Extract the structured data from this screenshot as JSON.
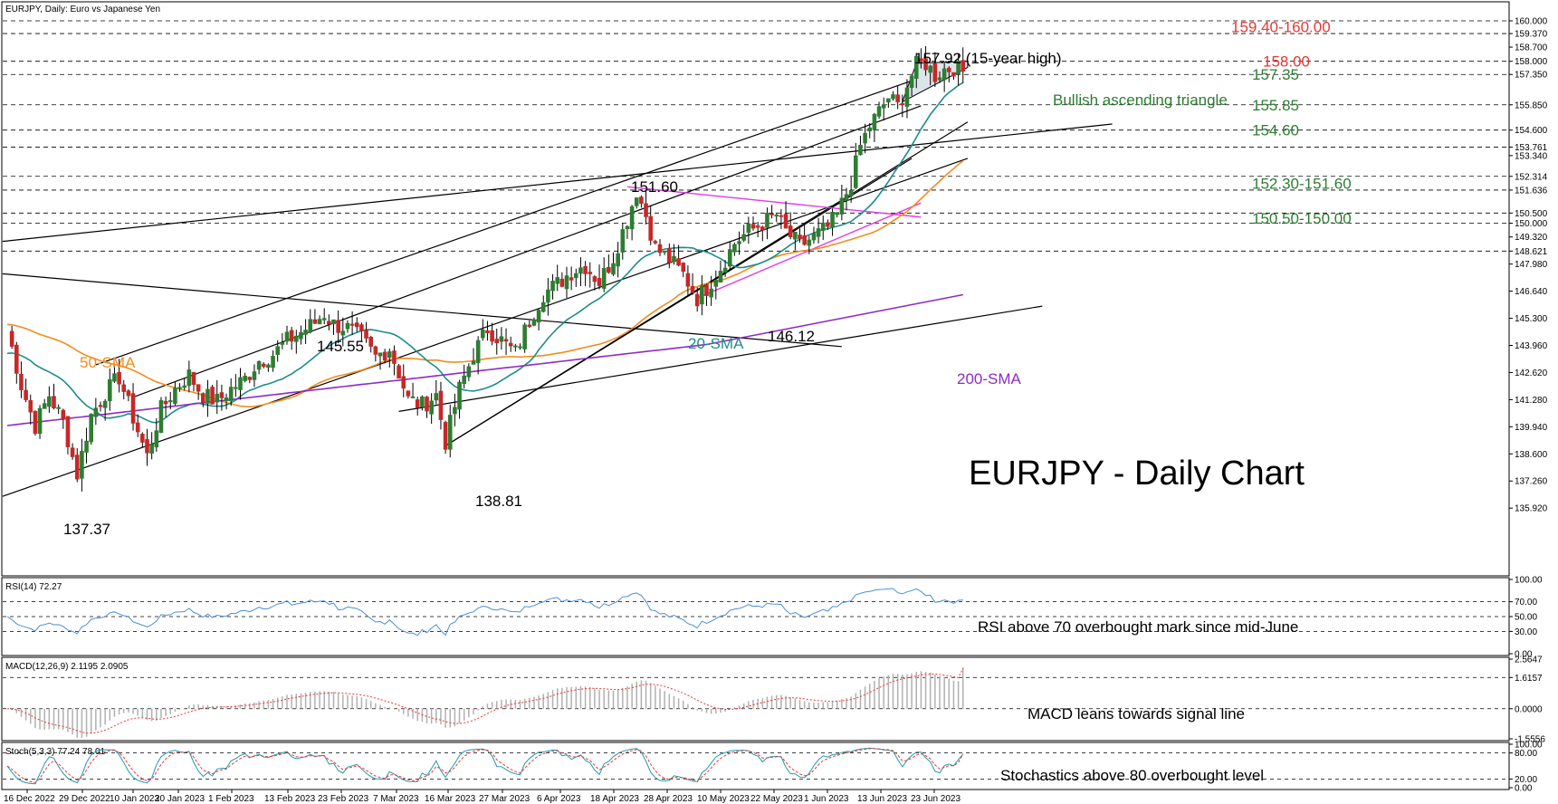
{
  "window": {
    "title": "EURJPY, Daily:  Euro vs Japanese Yen"
  },
  "colors": {
    "background": "#ffffff",
    "candle_up": "#2e7d32",
    "candle_down": "#c62828",
    "sma20": "#1e8c8c",
    "sma50": "#f28c1e",
    "sma200": "#8e2bc6",
    "trendline": "#000000",
    "pink_trend": "#e040e0",
    "label_red": "#e53935",
    "label_green": "#2e7d32",
    "rsi_line": "#4a90d9",
    "macd_hist": "#b0b0b0",
    "macd_signal": "#e53935",
    "stoch_main": "#1e9ab0",
    "stoch_signal": "#e53935"
  },
  "chart_data": [
    {
      "type": "candlestick",
      "title": "EURJPY - Daily Chart",
      "series_label": "EURJPY, Daily:  Euro vs Japanese Yen",
      "ylim": [
        135.2,
        160.3
      ],
      "price_axis_ticks": [
        "160.000",
        "159.370",
        "158.700",
        "158.000",
        "157.350",
        "155.850",
        "154.600",
        "153.761",
        "153.340",
        "152.314",
        "151.636",
        "150.500",
        "150.000",
        "149.320",
        "148.621",
        "147.980",
        "146.640",
        "145.300",
        "143.960",
        "142.620",
        "141.280",
        "139.940",
        "138.600",
        "137.260",
        "135.920"
      ],
      "date_ticks": [
        "16 Dec 2022",
        "29 Dec 2022",
        "10 Jan 2023",
        "20 Jan 2023",
        "1 Feb 2023",
        "13 Feb 2023",
        "23 Feb 2023",
        "7 Mar 2023",
        "16 Mar 2023",
        "27 Mar 2023",
        "6 Apr 2023",
        "18 Apr 2023",
        "28 Apr 2023",
        "10 May 2023",
        "22 May 2023",
        "1 Jun 2023",
        "13 Jun 2023",
        "23 Jun 2023"
      ],
      "close_path": [
        {
          "day": 0,
          "close": 144.8
        },
        {
          "day": 3,
          "close": 142.0
        },
        {
          "day": 6,
          "close": 140.0
        },
        {
          "day": 9,
          "close": 141.5
        },
        {
          "day": 12,
          "close": 140.2
        },
        {
          "day": 15,
          "close": 137.6
        },
        {
          "day": 18,
          "close": 140.5
        },
        {
          "day": 21,
          "close": 141.6
        },
        {
          "day": 24,
          "close": 142.4
        },
        {
          "day": 27,
          "close": 140.4
        },
        {
          "day": 30,
          "close": 138.5
        },
        {
          "day": 33,
          "close": 140.8
        },
        {
          "day": 36,
          "close": 141.8
        },
        {
          "day": 39,
          "close": 142.5
        },
        {
          "day": 42,
          "close": 141.5
        },
        {
          "day": 45,
          "close": 141.2
        },
        {
          "day": 48,
          "close": 141.8
        },
        {
          "day": 51,
          "close": 142.3
        },
        {
          "day": 54,
          "close": 143.2
        },
        {
          "day": 57,
          "close": 143.5
        },
        {
          "day": 60,
          "close": 144.2
        },
        {
          "day": 63,
          "close": 144.6
        },
        {
          "day": 66,
          "close": 145.1
        },
        {
          "day": 68,
          "close": 145.5
        },
        {
          "day": 70,
          "close": 145.0
        },
        {
          "day": 73,
          "close": 144.8
        },
        {
          "day": 76,
          "close": 144.3
        },
        {
          "day": 79,
          "close": 143.4
        },
        {
          "day": 82,
          "close": 143.8
        },
        {
          "day": 84,
          "close": 142.6
        },
        {
          "day": 86,
          "close": 141.3
        },
        {
          "day": 89,
          "close": 141.0
        },
        {
          "day": 92,
          "close": 141.5
        },
        {
          "day": 94,
          "close": 139.2
        },
        {
          "day": 97,
          "close": 141.8
        },
        {
          "day": 100,
          "close": 143.5
        },
        {
          "day": 103,
          "close": 144.8
        },
        {
          "day": 106,
          "close": 144.2
        },
        {
          "day": 109,
          "close": 143.6
        },
        {
          "day": 112,
          "close": 145.2
        },
        {
          "day": 115,
          "close": 146.5
        },
        {
          "day": 118,
          "close": 147.0
        },
        {
          "day": 121,
          "close": 147.6
        },
        {
          "day": 124,
          "close": 147.9
        },
        {
          "day": 127,
          "close": 147.1
        },
        {
          "day": 130,
          "close": 148.3
        },
        {
          "day": 133,
          "close": 150.2
        },
        {
          "day": 135,
          "close": 151.6
        },
        {
          "day": 137,
          "close": 150.4
        },
        {
          "day": 139,
          "close": 148.8
        },
        {
          "day": 142,
          "close": 148.2
        },
        {
          "day": 145,
          "close": 147.5
        },
        {
          "day": 148,
          "close": 146.3
        },
        {
          "day": 150,
          "close": 146.8
        },
        {
          "day": 153,
          "close": 147.8
        },
        {
          "day": 156,
          "close": 149.0
        },
        {
          "day": 159,
          "close": 149.6
        },
        {
          "day": 162,
          "close": 150.0
        },
        {
          "day": 165,
          "close": 150.4
        },
        {
          "day": 167,
          "close": 149.6
        },
        {
          "day": 170,
          "close": 148.9
        },
        {
          "day": 173,
          "close": 149.3
        },
        {
          "day": 176,
          "close": 149.8
        },
        {
          "day": 178,
          "close": 150.4
        },
        {
          "day": 181,
          "close": 152.0
        },
        {
          "day": 183,
          "close": 153.8
        },
        {
          "day": 185,
          "close": 154.8
        },
        {
          "day": 187,
          "close": 155.5
        },
        {
          "day": 189,
          "close": 156.2
        },
        {
          "day": 191,
          "close": 155.8
        },
        {
          "day": 193,
          "close": 156.8
        },
        {
          "day": 195,
          "close": 157.8
        },
        {
          "day": 197,
          "close": 157.9
        },
        {
          "day": 199,
          "close": 157.3
        },
        {
          "day": 201,
          "close": 157.6
        },
        {
          "day": 203,
          "close": 157.7
        },
        {
          "day": 205,
          "close": 157.5
        }
      ],
      "indicators": [
        {
          "name": "20-SMA",
          "period": 20
        },
        {
          "name": "50-SMA",
          "period": 50
        },
        {
          "name": "200-SMA",
          "period": 200
        }
      ],
      "level_labels": [
        {
          "text": "159.40-160.00",
          "price": 159.7,
          "color": "red"
        },
        {
          "text": "158.00",
          "price": 158.0,
          "color": "red"
        },
        {
          "text": "157.35",
          "price": 157.35,
          "color": "green"
        },
        {
          "text": "155.85",
          "price": 155.85,
          "color": "green"
        },
        {
          "text": "154.60",
          "price": 154.6,
          "color": "green"
        },
        {
          "text": "152.30-151.60",
          "price": 151.96,
          "color": "green"
        },
        {
          "text": "150.50-150.00",
          "price": 150.25,
          "color": "green"
        }
      ],
      "horizontal_levels": [
        160.0,
        159.37,
        158.0,
        157.35,
        155.85,
        154.6,
        153.761,
        152.314,
        151.636,
        150.5,
        150.0,
        148.621
      ],
      "price_annotations": [
        {
          "text": "157.92 (15-year high)",
          "price": 157.92
        },
        {
          "text": "151.60",
          "price": 151.6
        },
        {
          "text": "145.55",
          "price": 145.55
        },
        {
          "text": "146.12",
          "price": 146.12
        },
        {
          "text": "138.81",
          "price": 138.81
        },
        {
          "text": "137.37",
          "price": 137.37
        }
      ],
      "pattern_labels": [
        {
          "text": "Bullish ascending triangle"
        }
      ],
      "indicator_labels": {
        "sma20": "20-SMA",
        "sma50": "50-SMA",
        "sma200": "200-SMA"
      }
    },
    {
      "type": "line",
      "title": "RSI(14) 72.27",
      "value": 72.27,
      "ylim": [
        0,
        100
      ],
      "ticks": [
        "100.00",
        "70.00",
        "50.00",
        "30.00",
        "0.00"
      ],
      "annotation": "RSI above 70 overbought mark since mid-June"
    },
    {
      "type": "bar",
      "title": "MACD(12,26,9) 2.1195 2.0905",
      "macd": 2.1195,
      "signal": 2.0905,
      "ylim": [
        -1.5556,
        2.5647
      ],
      "ticks": [
        "2.5647",
        "1.6157",
        "0.0000",
        "-1.5556"
      ],
      "annotation": "MACD leans towards signal line"
    },
    {
      "type": "line",
      "title": "Stoch(5,3,3) 77.24 78.01",
      "main": 77.24,
      "signal": 78.01,
      "ylim": [
        0,
        100
      ],
      "ticks": [
        "100.00",
        "80.00",
        "20.00",
        "0.00"
      ],
      "annotation": "Stochastics above 80 overbought level"
    }
  ]
}
